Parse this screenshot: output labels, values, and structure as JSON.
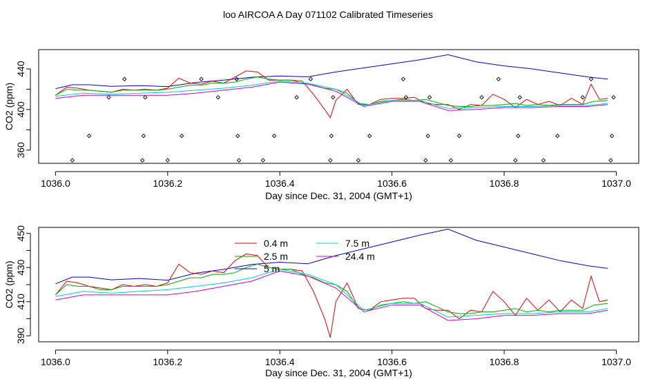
{
  "page": {
    "title": "loo AIRCOA A  Day 071102  Calibrated Timeseries"
  },
  "colors": {
    "axis": "#000000",
    "background": "#ffffff"
  },
  "chart_data": [
    {
      "type": "scatter+line",
      "panel": "top",
      "xlabel": "Day since Dec. 31, 2004 (GMT+1)",
      "ylabel": "CO2 (ppm)",
      "xlim": [
        1035.97,
        1037.04
      ],
      "ylim": [
        347,
        459
      ],
      "xticks": [
        1036.0,
        1036.2,
        1036.4,
        1036.6,
        1036.8,
        1037.0
      ],
      "xtick_labels": [
        "1036.0",
        "1036.2",
        "1036.4",
        "1036.6",
        "1036.8",
        "1037.0"
      ],
      "yticks": [
        360,
        380,
        400,
        420,
        440
      ],
      "ytick_labels": [
        "360",
        "",
        "400",
        "",
        "440"
      ],
      "grid": false,
      "legend": null,
      "series": [
        {
          "color": "#0000cc",
          "x": [
            1036.0,
            1036.03,
            1036.06,
            1036.1,
            1036.15,
            1036.2,
            1036.25,
            1036.3,
            1036.35,
            1036.4,
            1036.45,
            1036.5,
            1036.55,
            1036.6,
            1036.65,
            1036.7,
            1036.75,
            1036.8,
            1036.85,
            1036.9,
            1036.95,
            1036.985
          ],
          "y": [
            420.5,
            424.4,
            424.4,
            422.8,
            423.6,
            422.6,
            426.7,
            428.9,
            431.8,
            433.1,
            432.2,
            437,
            441,
            445,
            449,
            454,
            447,
            443,
            440,
            436,
            432,
            430
          ]
        },
        {
          "color": "#e00000",
          "x": [
            1036.0,
            1036.02,
            1036.04,
            1036.06,
            1036.08,
            1036.1,
            1036.12,
            1036.14,
            1036.16,
            1036.18,
            1036.2,
            1036.22,
            1036.24,
            1036.26,
            1036.28,
            1036.3,
            1036.32,
            1036.34,
            1036.36,
            1036.38,
            1036.4,
            1036.42,
            1036.44,
            1036.46,
            1036.48,
            1036.49,
            1036.5,
            1036.52,
            1036.54,
            1036.56,
            1036.58,
            1036.6,
            1036.62,
            1036.64,
            1036.66,
            1036.68,
            1036.7,
            1036.72,
            1036.74,
            1036.76,
            1036.78,
            1036.8,
            1036.82,
            1036.84,
            1036.86,
            1036.88,
            1036.9,
            1036.92,
            1036.94,
            1036.955,
            1036.97,
            1036.985
          ],
          "y": [
            414,
            422,
            421,
            419,
            418,
            417,
            420,
            419,
            420,
            419,
            421,
            431,
            426,
            425,
            428,
            426,
            432,
            438,
            437,
            429,
            429,
            429,
            428,
            415,
            400,
            392,
            409,
            420,
            405,
            405,
            410,
            411,
            411,
            412,
            406,
            405,
            405,
            400,
            405,
            404,
            415,
            410,
            402,
            410,
            405,
            408,
            404,
            411,
            405,
            425,
            410,
            411
          ]
        },
        {
          "color": "#00aa00",
          "x": [
            1036.0,
            1036.02,
            1036.04,
            1036.06,
            1036.08,
            1036.1,
            1036.12,
            1036.14,
            1036.16,
            1036.18,
            1036.2,
            1036.22,
            1036.24,
            1036.26,
            1036.28,
            1036.3,
            1036.32,
            1036.34,
            1036.36,
            1036.38,
            1036.4,
            1036.42,
            1036.44,
            1036.46,
            1036.48,
            1036.5,
            1036.52,
            1036.54,
            1036.56,
            1036.58,
            1036.6,
            1036.62,
            1036.64,
            1036.66,
            1036.68,
            1036.7,
            1036.72,
            1036.74,
            1036.76,
            1036.78,
            1036.8,
            1036.82,
            1036.84,
            1036.86,
            1036.88,
            1036.9,
            1036.92,
            1036.94,
            1036.96,
            1036.985
          ],
          "y": [
            414,
            420,
            419,
            419,
            418,
            417,
            419,
            419,
            419,
            419,
            420,
            422,
            424,
            424,
            426,
            426,
            427,
            430,
            432,
            430,
            429,
            429,
            426,
            424,
            421,
            420,
            416,
            406,
            405,
            408,
            409,
            410,
            409,
            410,
            407,
            404,
            403,
            403,
            404,
            404,
            405,
            406,
            404,
            405,
            404,
            405,
            405,
            405,
            408,
            409
          ]
        },
        {
          "color": "#00cccc",
          "x": [
            1036.0,
            1036.05,
            1036.1,
            1036.15,
            1036.2,
            1036.25,
            1036.3,
            1036.35,
            1036.4,
            1036.45,
            1036.5,
            1036.55,
            1036.6,
            1036.65,
            1036.7,
            1036.75,
            1036.8,
            1036.85,
            1036.9,
            1036.95,
            1036.985
          ],
          "y": [
            413,
            416,
            415,
            416,
            417,
            419,
            421,
            424,
            428,
            426,
            420,
            404,
            409,
            409,
            401,
            402,
            403,
            403,
            404,
            404,
            406
          ]
        },
        {
          "color": "#cc00cc",
          "x": [
            1036.0,
            1036.05,
            1036.1,
            1036.15,
            1036.2,
            1036.25,
            1036.3,
            1036.35,
            1036.4,
            1036.45,
            1036.5,
            1036.55,
            1036.6,
            1036.65,
            1036.7,
            1036.75,
            1036.8,
            1036.85,
            1036.9,
            1036.95,
            1036.985
          ],
          "y": [
            411,
            414,
            414,
            414,
            414,
            416,
            419,
            422,
            427,
            425,
            418,
            403,
            408,
            408,
            399,
            400,
            402,
            402,
            403,
            403,
            405
          ]
        }
      ],
      "points": {
        "marker": "diamond-open",
        "x": [
          1036.03,
          1036.06,
          1036.095,
          1036.123,
          1036.155,
          1036.157,
          1036.16,
          1036.2,
          1036.225,
          1036.26,
          1036.29,
          1036.323,
          1036.325,
          1036.327,
          1036.37,
          1036.39,
          1036.43,
          1036.455,
          1036.49,
          1036.492,
          1036.495,
          1036.54,
          1036.56,
          1036.62,
          1036.625,
          1036.66,
          1036.664,
          1036.667,
          1036.705,
          1036.72,
          1036.76,
          1036.79,
          1036.82,
          1036.825,
          1036.828,
          1036.87,
          1036.895,
          1036.94,
          1036.955,
          1036.99,
          1036.992,
          1036.995
        ],
        "y": [
          350,
          374,
          412,
          430,
          350,
          374,
          412,
          350,
          374,
          430,
          412,
          430,
          374,
          350,
          350,
          374,
          412,
          430,
          350,
          374,
          412,
          350,
          374,
          430,
          412,
          350,
          374,
          412,
          350,
          374,
          412,
          430,
          350,
          374,
          412,
          350,
          374,
          412,
          430,
          350,
          374,
          412
        ]
      }
    },
    {
      "type": "line",
      "panel": "bottom",
      "xlabel": "Day since Dec. 31, 2004 (GMT+1)",
      "ylabel": "CO2 (ppm)",
      "xlim": [
        1035.97,
        1037.04
      ],
      "ylim": [
        386.5,
        453.5
      ],
      "xticks": [
        1036.0,
        1036.2,
        1036.4,
        1036.6,
        1036.8,
        1037.0
      ],
      "xtick_labels": [
        "1036.0",
        "1036.2",
        "1036.4",
        "1036.6",
        "1036.8",
        "1037.0"
      ],
      "yticks": [
        390,
        400,
        410,
        420,
        430,
        440,
        450
      ],
      "ytick_labels": [
        "390",
        "",
        "410",
        "",
        "430",
        "",
        "450"
      ],
      "grid": false,
      "legend": {
        "placement": "top-left",
        "entries": [
          {
            "label": "0.4 m",
            "color": "#e00000"
          },
          {
            "label": "7.5 m",
            "color": "#00cccc"
          },
          {
            "label": "2.5 m",
            "color": "#00aa00"
          },
          {
            "label": "24.4 m",
            "color": "#cc00cc"
          },
          {
            "label": "5 m",
            "color": "#0000cc"
          }
        ]
      },
      "series": [
        {
          "name": "5 m",
          "color": "#0000cc",
          "x": [
            1036.0,
            1036.03,
            1036.06,
            1036.1,
            1036.15,
            1036.2,
            1036.25,
            1036.3,
            1036.35,
            1036.4,
            1036.45,
            1036.5,
            1036.55,
            1036.6,
            1036.65,
            1036.7,
            1036.75,
            1036.8,
            1036.85,
            1036.9,
            1036.95,
            1036.985
          ],
          "y": [
            420.5,
            424.4,
            424.4,
            422.8,
            423.6,
            422.6,
            426.7,
            428.9,
            431.8,
            433.1,
            432.2,
            437,
            441,
            445,
            449,
            452.5,
            446,
            442,
            438,
            434,
            431,
            429.5
          ]
        },
        {
          "name": "0.4 m",
          "color": "#e00000",
          "x": [
            1036.0,
            1036.02,
            1036.04,
            1036.06,
            1036.08,
            1036.1,
            1036.12,
            1036.14,
            1036.16,
            1036.18,
            1036.2,
            1036.22,
            1036.24,
            1036.26,
            1036.28,
            1036.3,
            1036.32,
            1036.34,
            1036.36,
            1036.38,
            1036.4,
            1036.42,
            1036.44,
            1036.46,
            1036.48,
            1036.49,
            1036.5,
            1036.52,
            1036.54,
            1036.56,
            1036.58,
            1036.6,
            1036.62,
            1036.64,
            1036.66,
            1036.68,
            1036.7,
            1036.72,
            1036.74,
            1036.76,
            1036.78,
            1036.8,
            1036.82,
            1036.84,
            1036.86,
            1036.88,
            1036.9,
            1036.92,
            1036.94,
            1036.955,
            1036.97,
            1036.985
          ],
          "y": [
            414,
            422,
            421,
            419,
            418,
            417,
            420,
            419,
            420,
            419,
            421,
            432,
            427,
            426,
            428,
            427,
            434,
            438,
            437,
            430,
            429,
            429,
            428,
            416,
            400,
            389,
            410,
            421,
            406,
            405,
            410,
            411,
            412,
            412,
            406,
            405,
            405,
            400,
            405,
            404,
            416,
            410,
            402,
            412,
            405,
            411,
            404,
            411,
            406,
            425,
            410,
            411
          ]
        },
        {
          "name": "2.5 m",
          "color": "#00aa00",
          "x": [
            1036.0,
            1036.02,
            1036.04,
            1036.06,
            1036.08,
            1036.1,
            1036.12,
            1036.14,
            1036.16,
            1036.18,
            1036.2,
            1036.22,
            1036.24,
            1036.26,
            1036.28,
            1036.3,
            1036.32,
            1036.34,
            1036.36,
            1036.38,
            1036.4,
            1036.42,
            1036.44,
            1036.46,
            1036.48,
            1036.5,
            1036.52,
            1036.54,
            1036.56,
            1036.58,
            1036.6,
            1036.62,
            1036.64,
            1036.66,
            1036.68,
            1036.7,
            1036.72,
            1036.74,
            1036.76,
            1036.78,
            1036.8,
            1036.82,
            1036.84,
            1036.86,
            1036.88,
            1036.9,
            1036.92,
            1036.94,
            1036.96,
            1036.985
          ],
          "y": [
            414,
            420,
            419,
            419,
            417,
            417,
            419,
            419,
            419,
            419,
            420,
            422,
            424,
            424,
            426,
            426,
            427,
            430,
            432,
            430,
            429,
            429,
            426,
            424,
            421,
            420,
            416,
            406,
            405,
            408,
            409,
            410,
            409,
            410,
            407,
            404,
            403,
            403,
            404,
            404,
            405,
            406,
            404,
            405,
            404,
            405,
            405,
            405,
            408,
            409
          ]
        },
        {
          "name": "7.5 m",
          "color": "#00cccc",
          "x": [
            1036.0,
            1036.05,
            1036.1,
            1036.15,
            1036.2,
            1036.25,
            1036.3,
            1036.35,
            1036.4,
            1036.45,
            1036.5,
            1036.55,
            1036.6,
            1036.65,
            1036.7,
            1036.75,
            1036.8,
            1036.85,
            1036.9,
            1036.95,
            1036.985
          ],
          "y": [
            413,
            416,
            415,
            416,
            417,
            419,
            421,
            424,
            429,
            426,
            420,
            405,
            409,
            409,
            401,
            402,
            403,
            403,
            404,
            404,
            406
          ]
        },
        {
          "name": "24.4 m",
          "color": "#cc00cc",
          "x": [
            1036.0,
            1036.05,
            1036.1,
            1036.15,
            1036.2,
            1036.25,
            1036.3,
            1036.35,
            1036.4,
            1036.45,
            1036.5,
            1036.55,
            1036.6,
            1036.65,
            1036.7,
            1036.75,
            1036.8,
            1036.85,
            1036.9,
            1036.95,
            1036.985
          ],
          "y": [
            411,
            414,
            414,
            414,
            414,
            416,
            419,
            422,
            428,
            425,
            418,
            404,
            408,
            408,
            399,
            400,
            402,
            402,
            403,
            403,
            405
          ]
        }
      ]
    }
  ]
}
